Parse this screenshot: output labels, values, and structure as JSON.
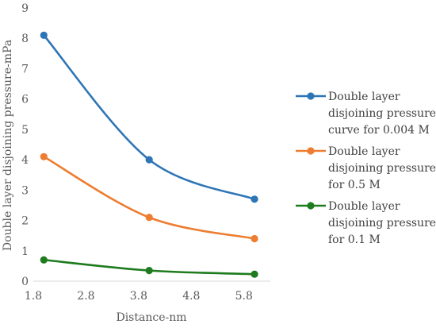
{
  "chart_data": {
    "type": "line",
    "title": "",
    "xlabel": "Distance-nm",
    "ylabel": "Double layer disjoining pressure-mPa",
    "xlim": [
      1.8,
      6.3
    ],
    "ylim": [
      0,
      9
    ],
    "x_ticks": [
      "1.8",
      "2.8",
      "3.8",
      "4.8",
      "5.8"
    ],
    "y_ticks": [
      "0",
      "1",
      "2",
      "3",
      "4",
      "5",
      "6",
      "7",
      "8",
      "9"
    ],
    "grid": false,
    "legend_position": "right",
    "smooth": true,
    "series": [
      {
        "name": "Double layer disjoining pressure curve for 0.004 M",
        "legend_lines": [
          "Double layer",
          "disjoining pressure",
          "curve for 0.004 M"
        ],
        "color": "#2E75B6",
        "x": [
          2,
          4,
          6
        ],
        "y": [
          8.1,
          4.0,
          2.7
        ]
      },
      {
        "name": "Double layer disjoining pressure for 0.5 M",
        "legend_lines": [
          "Double layer",
          "disjoining pressure",
          "for 0.5 M"
        ],
        "color": "#ED7D31",
        "x": [
          2,
          4,
          6
        ],
        "y": [
          4.1,
          2.1,
          1.4
        ]
      },
      {
        "name": "Double layer disjoining pressure for 0.1 M",
        "legend_lines": [
          "Double layer",
          "disjoining pressure",
          "for 0.1 M"
        ],
        "color": "#1E7B1E",
        "x": [
          2,
          4,
          6
        ],
        "y": [
          0.7,
          0.35,
          0.23
        ]
      }
    ]
  }
}
